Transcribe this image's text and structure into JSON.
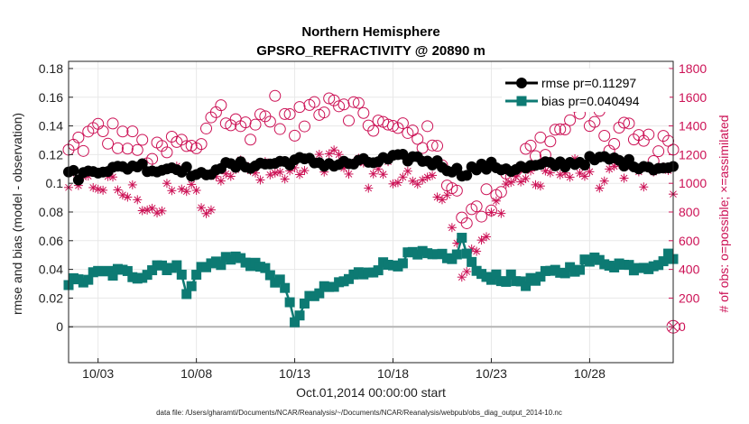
{
  "chart_data": {
    "type": "line",
    "title": "Northern Hemisphere",
    "subtitle": "GPSRO_REFRACTIVITY @ 20890 m",
    "xlabel": "Oct.01,2014 00:00:00 start",
    "ylabel_left": "rmse and bias (model - observation)",
    "ylabel_right": "# of obs: o=possible; ×=assimilated",
    "footnote": "data file: /Users/gharamti/Documents/NCAR/Reanalysis/~/Documents/NCAR/Reanalysis/webpub/obs_diag_output_2014-10.nc",
    "x_range_days": [
      1.5,
      32.25
    ],
    "x_ticks": [
      {
        "day": 3,
        "label": "10/03"
      },
      {
        "day": 8,
        "label": "10/08"
      },
      {
        "day": 13,
        "label": "10/13"
      },
      {
        "day": 18,
        "label": "10/18"
      },
      {
        "day": 23,
        "label": "10/23"
      },
      {
        "day": 28,
        "label": "10/28"
      }
    ],
    "ylim_left": [
      -0.025,
      0.185
    ],
    "yticks_left": [
      "0",
      "0.02",
      "0.04",
      "0.06",
      "0.08",
      "0.1",
      "0.12",
      "0.14",
      "0.16",
      "0.18"
    ],
    "ylim_right": [
      -250,
      1850
    ],
    "yticks_right": [
      "0",
      "200",
      "400",
      "600",
      "800",
      "1000",
      "1200",
      "1400",
      "1600",
      "1800"
    ],
    "grid": true,
    "legend_position": "top-right",
    "colors": {
      "rmse": "#000000",
      "bias": "#0d7a73",
      "counts": "#cc1155",
      "zero_line": "#b4b4b4"
    },
    "series": [
      {
        "name": "rmse pr=0.11297",
        "key": "rmse",
        "marker": "circle",
        "knots": [
          [
            1.5,
            0.108
          ],
          [
            2,
            0.105
          ],
          [
            3,
            0.11
          ],
          [
            4,
            0.11
          ],
          [
            5,
            0.113
          ],
          [
            6,
            0.109
          ],
          [
            7,
            0.112
          ],
          [
            8,
            0.106
          ],
          [
            8.5,
            0.104
          ],
          [
            9,
            0.112
          ],
          [
            10,
            0.112
          ],
          [
            11,
            0.113
          ],
          [
            12,
            0.114
          ],
          [
            13,
            0.116
          ],
          [
            14,
            0.115
          ],
          [
            15,
            0.113
          ],
          [
            16,
            0.114
          ],
          [
            17,
            0.115
          ],
          [
            18,
            0.117
          ],
          [
            19,
            0.118
          ],
          [
            20,
            0.115
          ],
          [
            21,
            0.11
          ],
          [
            21.5,
            0.107
          ],
          [
            22,
            0.11
          ],
          [
            23,
            0.112
          ],
          [
            24,
            0.11
          ],
          [
            25,
            0.111
          ],
          [
            26,
            0.113
          ],
          [
            27,
            0.114
          ],
          [
            28,
            0.116
          ],
          [
            29,
            0.117
          ],
          [
            30,
            0.114
          ],
          [
            31,
            0.112
          ],
          [
            32.25,
            0.11
          ]
        ]
      },
      {
        "name": "bias pr=0.040494",
        "key": "bias",
        "marker": "square",
        "knots": [
          [
            1.5,
            0.031
          ],
          [
            2,
            0.031
          ],
          [
            3,
            0.037
          ],
          [
            4,
            0.038
          ],
          [
            5,
            0.036
          ],
          [
            5.5,
            0.038
          ],
          [
            6,
            0.043
          ],
          [
            7,
            0.042
          ],
          [
            7.5,
            0.025
          ],
          [
            8,
            0.038
          ],
          [
            9,
            0.045
          ],
          [
            10,
            0.048
          ],
          [
            11,
            0.044
          ],
          [
            12,
            0.034
          ],
          [
            12.5,
            0.025
          ],
          [
            13,
            0.005
          ],
          [
            13.5,
            0.015
          ],
          [
            14,
            0.022
          ],
          [
            15,
            0.028
          ],
          [
            16,
            0.035
          ],
          [
            17,
            0.041
          ],
          [
            18,
            0.044
          ],
          [
            19,
            0.05
          ],
          [
            20,
            0.049
          ],
          [
            21,
            0.046
          ],
          [
            21.5,
            0.06
          ],
          [
            22,
            0.044
          ],
          [
            22.5,
            0.034
          ],
          [
            23,
            0.036
          ],
          [
            24,
            0.033
          ],
          [
            25,
            0.031
          ],
          [
            26,
            0.037
          ],
          [
            27,
            0.04
          ],
          [
            28,
            0.046
          ],
          [
            29,
            0.045
          ],
          [
            30,
            0.042
          ],
          [
            31,
            0.043
          ],
          [
            32.25,
            0.05
          ]
        ]
      },
      {
        "name": "obs possible",
        "key": "possible",
        "marker": "open-circle",
        "axis": "right",
        "knots": [
          [
            1.5,
            1200
          ],
          [
            2,
            1280
          ],
          [
            3,
            1350
          ],
          [
            4,
            1330
          ],
          [
            5,
            1250
          ],
          [
            6,
            1180
          ],
          [
            7,
            1280
          ],
          [
            8,
            1200
          ],
          [
            8.5,
            1400
          ],
          [
            9,
            1550
          ],
          [
            10,
            1380
          ],
          [
            11,
            1420
          ],
          [
            12,
            1520
          ],
          [
            13,
            1380
          ],
          [
            14,
            1550
          ],
          [
            15,
            1620
          ],
          [
            16,
            1520
          ],
          [
            17,
            1420
          ],
          [
            18,
            1360
          ],
          [
            19,
            1400
          ],
          [
            20,
            1260
          ],
          [
            21,
            1000
          ],
          [
            21.5,
            850
          ],
          [
            22,
            760
          ],
          [
            23,
            900
          ],
          [
            24,
            1100
          ],
          [
            25,
            1220
          ],
          [
            26,
            1300
          ],
          [
            27,
            1420
          ],
          [
            28,
            1500
          ],
          [
            29,
            1300
          ],
          [
            30,
            1380
          ],
          [
            31,
            1250
          ],
          [
            32.25,
            1300
          ]
        ]
      },
      {
        "name": "obs assimilated",
        "key": "assimilated",
        "marker": "asterisk",
        "axis": "right",
        "knots": [
          [
            1.5,
            1010
          ],
          [
            2,
            950
          ],
          [
            3,
            1020
          ],
          [
            4,
            960
          ],
          [
            5,
            900
          ],
          [
            6,
            800
          ],
          [
            7,
            1050
          ],
          [
            8,
            1000
          ],
          [
            8.5,
            700
          ],
          [
            9,
            1120
          ],
          [
            10,
            1100
          ],
          [
            11,
            1070
          ],
          [
            12,
            1050
          ],
          [
            13,
            1050
          ],
          [
            14,
            1100
          ],
          [
            15,
            1160
          ],
          [
            16,
            1080
          ],
          [
            17,
            1060
          ],
          [
            18,
            1070
          ],
          [
            19,
            1040
          ],
          [
            20,
            990
          ],
          [
            21,
            790
          ],
          [
            21.5,
            420
          ],
          [
            22,
            500
          ],
          [
            23,
            720
          ],
          [
            24,
            960
          ],
          [
            25,
            1050
          ],
          [
            26,
            1100
          ],
          [
            27,
            1080
          ],
          [
            28,
            1100
          ],
          [
            29,
            1020
          ],
          [
            30,
            1050
          ],
          [
            31,
            1060
          ],
          [
            32.25,
            1000
          ]
        ]
      }
    ],
    "legend": [
      "rmse pr=0.11297",
      "bias pr=0.040494"
    ],
    "zero_line_value": 0,
    "right_axis_zero_marker": "circle-with-cross"
  }
}
